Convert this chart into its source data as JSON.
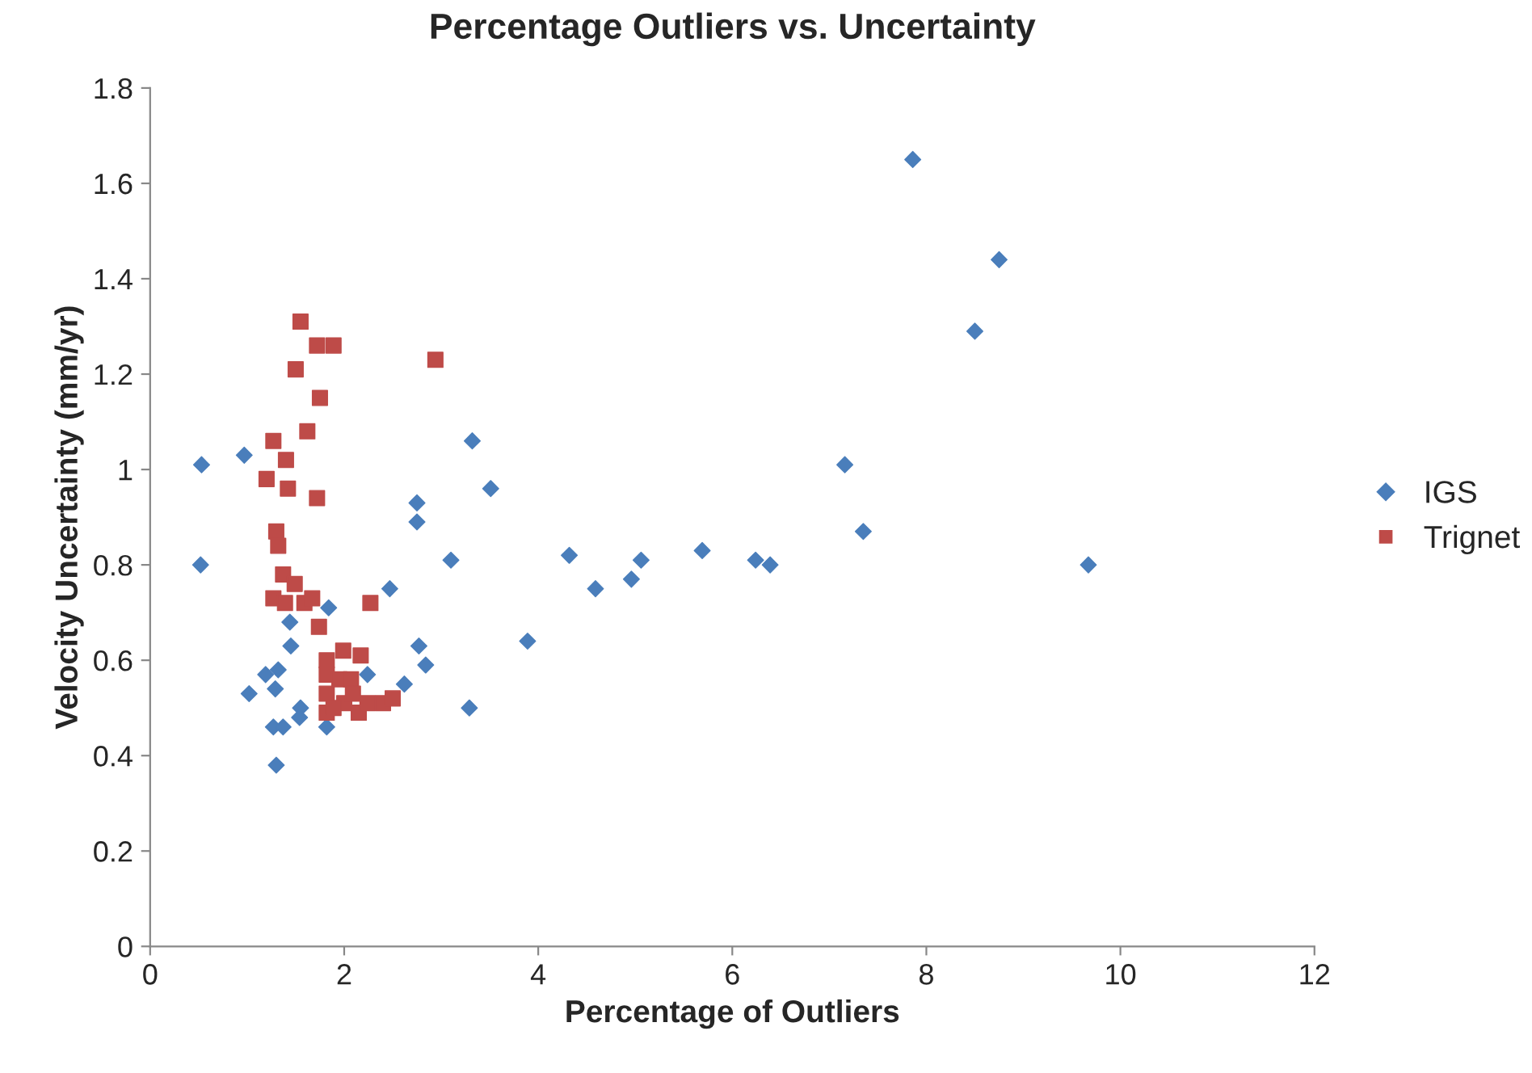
{
  "chart_data": {
    "type": "scatter",
    "title": "Percentage Outliers vs. Uncertainty",
    "xlabel": "Percentage of Outliers",
    "ylabel": "Velocity Uncertainty (mm/yr)",
    "xlim": [
      0,
      12
    ],
    "xticks": [
      0,
      2,
      4,
      6,
      8,
      10,
      12
    ],
    "ylim": [
      0,
      1.8
    ],
    "yticks": [
      0,
      0.2,
      0.4,
      0.6,
      0.8,
      1,
      1.2,
      1.4,
      1.6,
      1.8
    ],
    "grid": false,
    "legend": "right",
    "series": [
      {
        "name": "IGS",
        "color": "#4a7ebb",
        "marker": "diamond",
        "x": [
          0.53,
          0.52,
          0.97,
          3.32,
          3.51,
          2.75,
          2.75,
          3.1,
          2.47,
          1.84,
          1.44,
          1.45,
          2.77,
          3.89,
          2.84,
          2.24,
          1.19,
          1.32,
          1.29,
          1.02,
          2.62,
          1.55,
          1.54,
          3.29,
          1.27,
          1.37,
          1.82,
          1.3,
          7.86,
          8.75,
          8.5,
          7.16,
          7.35,
          9.67,
          4.32,
          4.59,
          5.06,
          4.96,
          5.69,
          6.24,
          6.39
        ],
        "values": [
          1.01,
          0.8,
          1.03,
          1.06,
          0.96,
          0.93,
          0.89,
          0.81,
          0.75,
          0.71,
          0.68,
          0.63,
          0.63,
          0.64,
          0.59,
          0.57,
          0.57,
          0.58,
          0.54,
          0.53,
          0.55,
          0.5,
          0.48,
          0.5,
          0.46,
          0.46,
          0.46,
          0.38,
          1.65,
          1.44,
          1.29,
          1.01,
          0.87,
          0.8,
          0.82,
          0.75,
          0.81,
          0.77,
          0.83,
          0.81,
          0.8
        ]
      },
      {
        "name": "Trignet",
        "color": "#be4b48",
        "marker": "square",
        "x": [
          1.55,
          1.72,
          1.89,
          2.94,
          1.5,
          1.75,
          1.62,
          1.27,
          1.4,
          1.2,
          1.42,
          1.72,
          1.3,
          1.32,
          1.37,
          1.49,
          1.27,
          1.39,
          1.59,
          1.67,
          2.27,
          1.74,
          1.99,
          2.17,
          1.82,
          1.82,
          1.82,
          1.82,
          1.95,
          2.07,
          2.0,
          2.15,
          2.24,
          2.4,
          2.5,
          1.89,
          2.09
        ],
        "values": [
          1.31,
          1.26,
          1.26,
          1.23,
          1.21,
          1.15,
          1.08,
          1.06,
          1.02,
          0.98,
          0.96,
          0.94,
          0.87,
          0.84,
          0.78,
          0.76,
          0.73,
          0.72,
          0.72,
          0.73,
          0.72,
          0.67,
          0.62,
          0.61,
          0.6,
          0.57,
          0.53,
          0.49,
          0.56,
          0.56,
          0.51,
          0.49,
          0.51,
          0.51,
          0.52,
          0.5,
          0.53
        ]
      }
    ]
  }
}
